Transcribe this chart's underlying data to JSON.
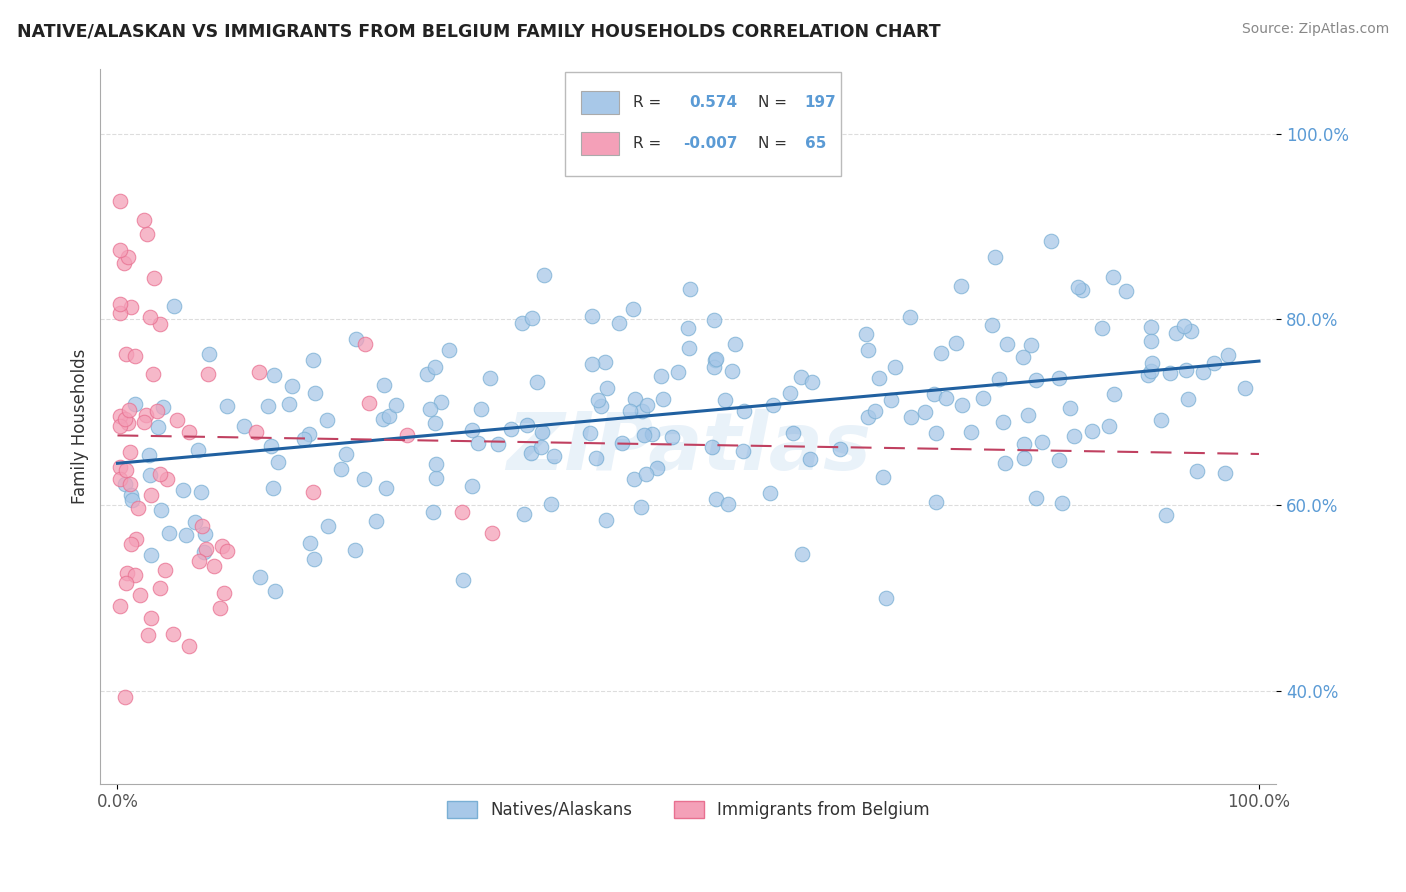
{
  "title": "NATIVE/ALASKAN VS IMMIGRANTS FROM BELGIUM FAMILY HOUSEHOLDS CORRELATION CHART",
  "source": "Source: ZipAtlas.com",
  "ylabel": "Family Households",
  "legend_R1": "0.574",
  "legend_N1": "197",
  "legend_R2": "-0.007",
  "legend_N2": "65",
  "blue_color": "#a8c8e8",
  "blue_edge_color": "#7aafd4",
  "pink_color": "#f4a0b8",
  "pink_edge_color": "#e87090",
  "blue_line_color": "#2060a0",
  "pink_line_color": "#c04060",
  "axis_color": "#aaaaaa",
  "grid_color": "#dddddd",
  "tick_color": "#5b9bd5",
  "title_color": "#222222",
  "source_color": "#888888",
  "watermark_color": "#5b9bd5",
  "blue_trend_start": 0.645,
  "blue_trend_end": 0.755,
  "pink_trend_start": 0.675,
  "pink_trend_end": 0.655,
  "y_ticks": [
    0.4,
    0.6,
    0.8,
    1.0
  ],
  "y_tick_labels": [
    "40.0%",
    "60.0%",
    "80.0%",
    "100.0%"
  ],
  "ylim_low": 0.3,
  "ylim_high": 1.07,
  "xlim_low": -0.015,
  "xlim_high": 1.015
}
